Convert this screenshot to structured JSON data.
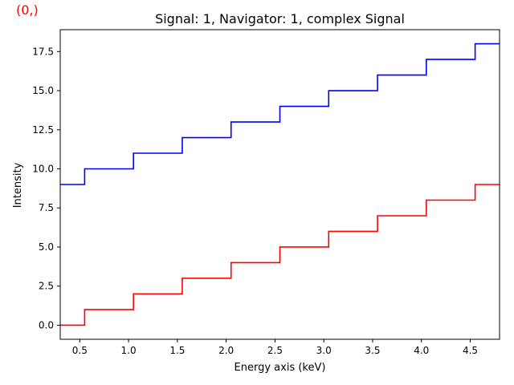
{
  "corner_label": "(0,)",
  "colors": {
    "corner_label": "#ff0000",
    "series_1": "#0000ff",
    "series_2": "#ff0000"
  },
  "chart_data": {
    "type": "line",
    "step": true,
    "title": "Signal: 1, Navigator: 1, complex Signal",
    "xlabel": "Energy axis (keV)",
    "ylabel": "Intensity",
    "xlim": [
      0.3,
      4.8
    ],
    "ylim": [
      -0.9,
      18.9
    ],
    "xticks": [
      0.5,
      1.0,
      1.5,
      2.0,
      2.5,
      3.0,
      3.5,
      4.0,
      4.5
    ],
    "xtick_labels": [
      "0.5",
      "1.0",
      "1.5",
      "2.0",
      "2.5",
      "3.0",
      "3.5",
      "4.0",
      "4.5"
    ],
    "yticks": [
      0.0,
      2.5,
      5.0,
      7.5,
      10.0,
      12.5,
      15.0,
      17.5
    ],
    "ytick_labels": [
      "0.0",
      "2.5",
      "5.0",
      "7.5",
      "10.0",
      "12.5",
      "15.0",
      "17.5"
    ],
    "grid": false,
    "legend": null,
    "x": [
      0.3,
      0.55,
      1.05,
      1.55,
      2.05,
      2.55,
      3.05,
      3.55,
      4.05,
      4.55,
      4.8
    ],
    "series": [
      {
        "values": [
          9,
          10,
          11,
          12,
          13,
          14,
          15,
          16,
          17,
          18,
          18
        ],
        "color": "#0000ff"
      },
      {
        "values": [
          0,
          1,
          2,
          3,
          4,
          5,
          6,
          7,
          8,
          9,
          9
        ],
        "color": "#ff0000"
      }
    ]
  }
}
